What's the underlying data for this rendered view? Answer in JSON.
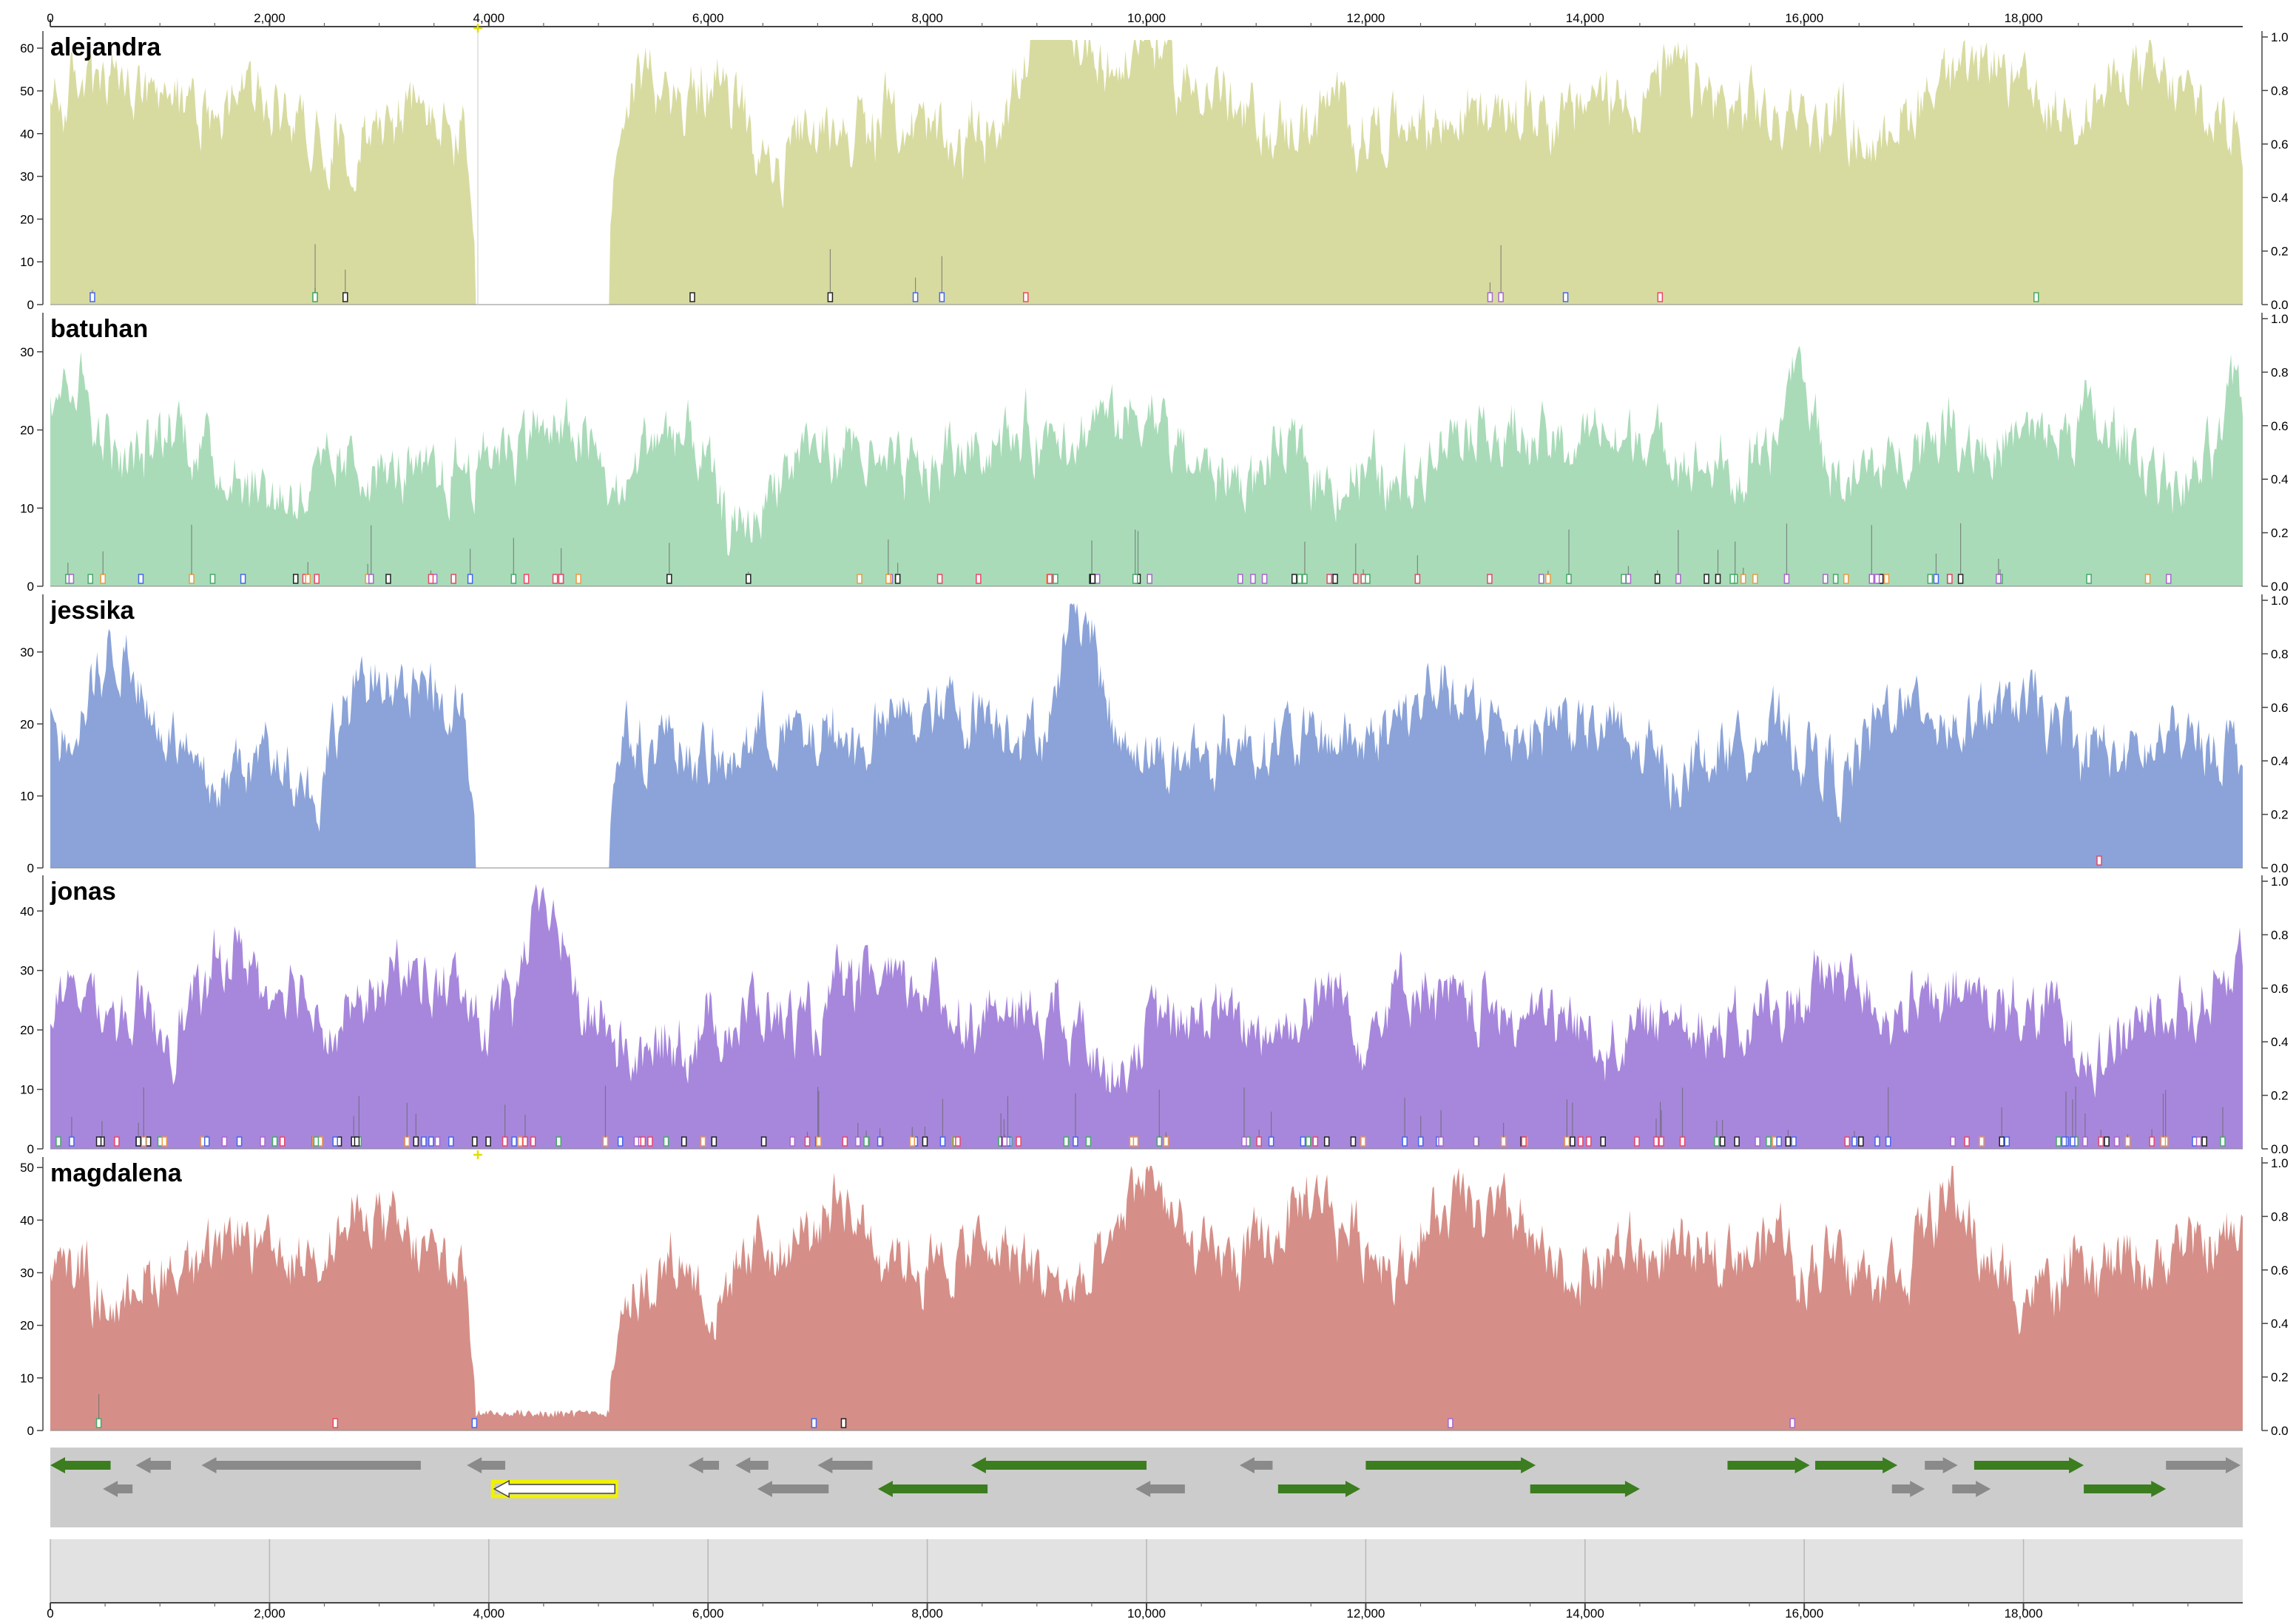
{
  "genome": {
    "length": 20000,
    "x_ticks": [
      0,
      2000,
      4000,
      6000,
      8000,
      10000,
      12000,
      14000,
      16000,
      18000
    ],
    "x_tick_labels": [
      "0",
      "2,000",
      "4,000",
      "6,000",
      "8,000",
      "10,000",
      "12,000",
      "14,000",
      "16,000",
      "18,000"
    ]
  },
  "right_axis_ticks": [
    "0.0",
    "0.2",
    "0.4",
    "0.6",
    "0.8",
    "1.0"
  ],
  "samples": [
    {
      "name": "alejandra",
      "color": "#d8dba0",
      "ymax": 60,
      "y_ticks": [
        "0",
        "10",
        "20",
        "30",
        "40",
        "50",
        "60"
      ],
      "y_values": [
        0,
        10,
        20,
        30,
        40,
        50,
        60
      ],
      "scale_max": 64,
      "gaps": [
        [
          3880,
          5100
        ]
      ],
      "variant_count": 14
    },
    {
      "name": "batuhan",
      "color": "#a9dbb8",
      "ymax": 30,
      "y_ticks": [
        "0",
        "10",
        "20",
        "30"
      ],
      "y_values": [
        0,
        10,
        20,
        30
      ],
      "scale_max": 35,
      "gaps": [],
      "variant_count": 90
    },
    {
      "name": "jessika",
      "color": "#8ba3d8",
      "ymax": 30,
      "y_ticks": [
        "0",
        "10",
        "20",
        "30"
      ],
      "y_values": [
        0,
        10,
        20,
        30
      ],
      "scale_max": 38,
      "gaps": [
        [
          3880,
          5100
        ]
      ],
      "variant_count": 1
    },
    {
      "name": "jonas",
      "color": "#a787dc",
      "ymax": 40,
      "y_ticks": [
        "0",
        "10",
        "20",
        "30",
        "40"
      ],
      "y_values": [
        0,
        10,
        20,
        30,
        40
      ],
      "scale_max": 46,
      "gaps": [],
      "variant_count": 150
    },
    {
      "name": "magdalena",
      "color": "#d58f88",
      "ymax": 50,
      "y_ticks": [
        "0",
        "10",
        "20",
        "30",
        "40",
        "50"
      ],
      "y_values": [
        0,
        10,
        20,
        30,
        40,
        50
      ],
      "scale_max": 52,
      "gaps": [
        [
          3880,
          5100
        ]
      ],
      "variant_count": 8
    }
  ],
  "genes": [
    {
      "start": 0,
      "end": 550,
      "strand": "-",
      "row": 0,
      "kind": "green"
    },
    {
      "start": 780,
      "end": 1100,
      "strand": "-",
      "row": 0,
      "kind": "gray"
    },
    {
      "start": 1380,
      "end": 3380,
      "strand": "-",
      "row": 0,
      "kind": "gray"
    },
    {
      "start": 3800,
      "end": 4150,
      "strand": "-",
      "row": 0,
      "kind": "gray"
    },
    {
      "start": 5820,
      "end": 6100,
      "strand": "-",
      "row": 0,
      "kind": "gray"
    },
    {
      "start": 6250,
      "end": 6550,
      "strand": "-",
      "row": 0,
      "kind": "gray"
    },
    {
      "start": 7000,
      "end": 7500,
      "strand": "-",
      "row": 0,
      "kind": "gray"
    },
    {
      "start": 8400,
      "end": 10000,
      "strand": "-",
      "row": 0,
      "kind": "green"
    },
    {
      "start": 10850,
      "end": 11150,
      "strand": "-",
      "row": 0,
      "kind": "gray"
    },
    {
      "start": 12000,
      "end": 13550,
      "strand": "+",
      "row": 0,
      "kind": "green"
    },
    {
      "start": 15300,
      "end": 16050,
      "strand": "+",
      "row": 0,
      "kind": "green"
    },
    {
      "start": 16100,
      "end": 16850,
      "strand": "+",
      "row": 0,
      "kind": "green"
    },
    {
      "start": 17100,
      "end": 17400,
      "strand": "+",
      "row": 0,
      "kind": "gray"
    },
    {
      "start": 17550,
      "end": 18550,
      "strand": "+",
      "row": 0,
      "kind": "green"
    },
    {
      "start": 19300,
      "end": 19980,
      "strand": "+",
      "row": 0,
      "kind": "gray"
    },
    {
      "start": 480,
      "end": 750,
      "strand": "-",
      "row": 1,
      "kind": "gray"
    },
    {
      "start": 4050,
      "end": 5150,
      "strand": "-",
      "row": 1,
      "kind": "selected"
    },
    {
      "start": 6450,
      "end": 7100,
      "strand": "-",
      "row": 1,
      "kind": "gray"
    },
    {
      "start": 7550,
      "end": 8550,
      "strand": "-",
      "row": 1,
      "kind": "green"
    },
    {
      "start": 9900,
      "end": 10350,
      "strand": "-",
      "row": 1,
      "kind": "gray"
    },
    {
      "start": 11200,
      "end": 11950,
      "strand": "+",
      "row": 1,
      "kind": "green"
    },
    {
      "start": 13500,
      "end": 14500,
      "strand": "+",
      "row": 1,
      "kind": "green"
    },
    {
      "start": 16800,
      "end": 17100,
      "strand": "+",
      "row": 1,
      "kind": "gray"
    },
    {
      "start": 17350,
      "end": 17700,
      "strand": "+",
      "row": 1,
      "kind": "gray"
    },
    {
      "start": 18550,
      "end": 19300,
      "strand": "+",
      "row": 1,
      "kind": "green"
    }
  ],
  "markers": [
    {
      "position": 3900,
      "color": "#e0e000"
    }
  ],
  "colors": {
    "gene_green": "#3b7d1f",
    "gene_gray": "#8a8a8a",
    "selected_outline": "#f2f200",
    "gene_track_bg": "#cccccc",
    "overview_bg": "#e2e2e2"
  }
}
